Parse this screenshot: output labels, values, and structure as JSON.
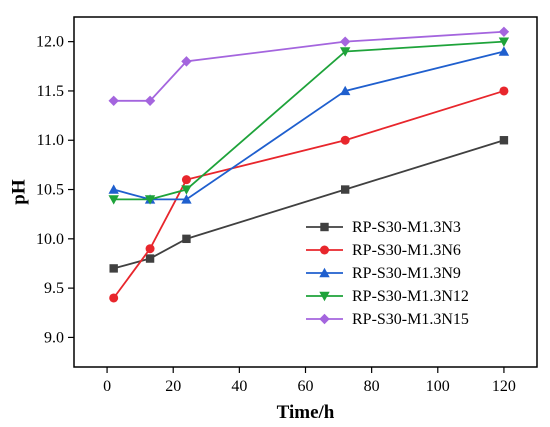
{
  "chart_data": {
    "type": "line",
    "title": "",
    "xlabel": "Time/h",
    "ylabel": "pH",
    "xlim": [
      -10,
      130
    ],
    "ylim": [
      8.7,
      12.25
    ],
    "xticks": [
      0,
      20,
      40,
      60,
      80,
      100,
      120
    ],
    "yticks": [
      9.0,
      9.5,
      10.0,
      10.5,
      11.0,
      11.5,
      12.0
    ],
    "grid": false,
    "legend_position": "bottom-right",
    "x": [
      2,
      13,
      24,
      72,
      120
    ],
    "series": [
      {
        "name": "RP-S30-M1.3N3",
        "color": "#404040",
        "marker": "square",
        "values": [
          9.7,
          9.8,
          10.0,
          10.5,
          11.0
        ]
      },
      {
        "name": "RP-S30-M1.3N6",
        "color": "#e8262c",
        "marker": "circle",
        "values": [
          9.4,
          9.9,
          10.6,
          11.0,
          11.5
        ]
      },
      {
        "name": "RP-S30-M1.3N9",
        "color": "#1f5fce",
        "marker": "triangle-up",
        "values": [
          10.5,
          10.4,
          10.4,
          11.5,
          11.9
        ]
      },
      {
        "name": "RP-S30-M1.3N12",
        "color": "#1ea33a",
        "marker": "triangle-down",
        "values": [
          10.4,
          10.4,
          10.5,
          11.9,
          12.0
        ]
      },
      {
        "name": "RP-S30-M1.3N15",
        "color": "#a465de",
        "marker": "diamond",
        "values": [
          11.4,
          11.4,
          11.8,
          12.0,
          12.1
        ]
      }
    ]
  }
}
